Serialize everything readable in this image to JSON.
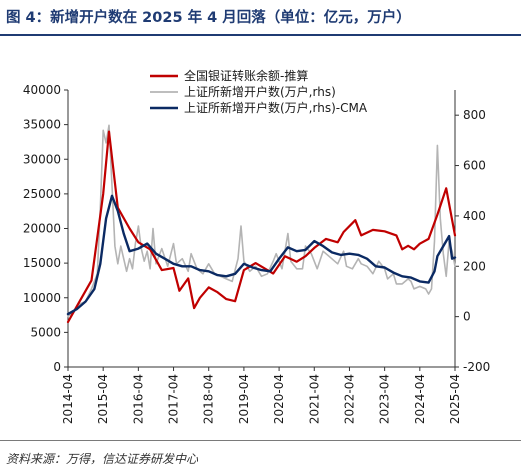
{
  "figure": {
    "title": "图 4：新增开户数在 2025 年 4 月回落（单位：亿元，万户）",
    "source": "资料来源：万得，信达证券研发中心"
  },
  "colors": {
    "title": "#1f3b73",
    "margin_balance": "#c00000",
    "new_accounts": "#b4b4b4",
    "new_accounts_ma": "#0b2a63"
  },
  "chart_data": {
    "type": "line",
    "x_tick_labels": [
      "2014-04",
      "2015-04",
      "2016-04",
      "2017-04",
      "2018-04",
      "2019-04",
      "2020-04",
      "2021-04",
      "2022-04",
      "2023-04",
      "2024-04",
      "2025-04"
    ],
    "y_left": {
      "ylim": [
        0,
        40000
      ],
      "ticks": [
        0,
        5000,
        10000,
        15000,
        20000,
        25000,
        30000,
        35000,
        40000
      ]
    },
    "y_right": {
      "ylim": [
        -200,
        900
      ],
      "ticks": [
        -200,
        0,
        200,
        400,
        600,
        800
      ]
    },
    "legend_position": "top",
    "series": [
      {
        "name": "全国银证转账余额-推算",
        "axis": "left",
        "color": "#c00000",
        "points": [
          [
            "2014-04",
            6500
          ],
          [
            "2014-08",
            9500
          ],
          [
            "2014-12",
            12500
          ],
          [
            "2015-04",
            25000
          ],
          [
            "2015-06",
            34000
          ],
          [
            "2015-09",
            23000
          ],
          [
            "2016-01",
            20000
          ],
          [
            "2016-04",
            18000
          ],
          [
            "2016-08",
            17000
          ],
          [
            "2016-12",
            14000
          ],
          [
            "2017-04",
            14300
          ],
          [
            "2017-06",
            11000
          ],
          [
            "2017-09",
            12800
          ],
          [
            "2017-11",
            8500
          ],
          [
            "2018-01",
            10000
          ],
          [
            "2018-04",
            11500
          ],
          [
            "2018-07",
            10800
          ],
          [
            "2018-10",
            9800
          ],
          [
            "2019-01",
            9500
          ],
          [
            "2019-04",
            14000
          ],
          [
            "2019-08",
            15000
          ],
          [
            "2019-12",
            14000
          ],
          [
            "2020-02",
            13500
          ],
          [
            "2020-06",
            16000
          ],
          [
            "2020-10",
            15200
          ],
          [
            "2021-01",
            16000
          ],
          [
            "2021-04",
            17200
          ],
          [
            "2021-08",
            18500
          ],
          [
            "2021-12",
            18000
          ],
          [
            "2022-02",
            19500
          ],
          [
            "2022-06",
            21200
          ],
          [
            "2022-08",
            19000
          ],
          [
            "2022-12",
            19800
          ],
          [
            "2023-04",
            19600
          ],
          [
            "2023-08",
            19000
          ],
          [
            "2023-10",
            17000
          ],
          [
            "2023-12",
            17500
          ],
          [
            "2024-02",
            17000
          ],
          [
            "2024-04",
            17800
          ],
          [
            "2024-07",
            18500
          ],
          [
            "2024-10",
            22000
          ],
          [
            "2025-01",
            25800
          ],
          [
            "2025-04",
            19000
          ]
        ]
      },
      {
        "name": "上证所新增开户数(万户,rhs)",
        "axis": "right",
        "color": "#b4b4b4",
        "points": [
          [
            "2014-04",
            1
          ],
          [
            "2014-06",
            20
          ],
          [
            "2014-08",
            50
          ],
          [
            "2014-10",
            60
          ],
          [
            "2014-12",
            110
          ],
          [
            "2015-02",
            170
          ],
          [
            "2015-03",
            430
          ],
          [
            "2015-04",
            740
          ],
          [
            "2015-05",
            690
          ],
          [
            "2015-06",
            760
          ],
          [
            "2015-07",
            520
          ],
          [
            "2015-08",
            280
          ],
          [
            "2015-09",
            210
          ],
          [
            "2015-10",
            280
          ],
          [
            "2015-12",
            180
          ],
          [
            "2016-01",
            230
          ],
          [
            "2016-02",
            190
          ],
          [
            "2016-03",
            290
          ],
          [
            "2016-04",
            360
          ],
          [
            "2016-05",
            270
          ],
          [
            "2016-06",
            220
          ],
          [
            "2016-07",
            260
          ],
          [
            "2016-08",
            190
          ],
          [
            "2016-09",
            350
          ],
          [
            "2016-10",
            210
          ],
          [
            "2016-12",
            270
          ],
          [
            "2017-02",
            200
          ],
          [
            "2017-04",
            290
          ],
          [
            "2017-05",
            210
          ],
          [
            "2017-07",
            230
          ],
          [
            "2017-09",
            180
          ],
          [
            "2017-10",
            250
          ],
          [
            "2017-12",
            190
          ],
          [
            "2018-02",
            170
          ],
          [
            "2018-04",
            210
          ],
          [
            "2018-06",
            170
          ],
          [
            "2018-08",
            160
          ],
          [
            "2018-10",
            150
          ],
          [
            "2018-12",
            140
          ],
          [
            "2019-02",
            230
          ],
          [
            "2019-03",
            360
          ],
          [
            "2019-04",
            220
          ],
          [
            "2019-06",
            180
          ],
          [
            "2019-08",
            200
          ],
          [
            "2019-10",
            160
          ],
          [
            "2019-12",
            170
          ],
          [
            "2020-02",
            220
          ],
          [
            "2020-03",
            250
          ],
          [
            "2020-05",
            190
          ],
          [
            "2020-07",
            330
          ],
          [
            "2020-08",
            220
          ],
          [
            "2020-10",
            190
          ],
          [
            "2020-12",
            190
          ],
          [
            "2021-01",
            280
          ],
          [
            "2021-03",
            250
          ],
          [
            "2021-05",
            190
          ],
          [
            "2021-07",
            260
          ],
          [
            "2021-09",
            240
          ],
          [
            "2021-12",
            210
          ],
          [
            "2022-02",
            260
          ],
          [
            "2022-03",
            200
          ],
          [
            "2022-05",
            190
          ],
          [
            "2022-07",
            230
          ],
          [
            "2022-08",
            210
          ],
          [
            "2022-10",
            200
          ],
          [
            "2022-12",
            170
          ],
          [
            "2023-02",
            220
          ],
          [
            "2023-04",
            190
          ],
          [
            "2023-05",
            150
          ],
          [
            "2023-07",
            170
          ],
          [
            "2023-08",
            130
          ],
          [
            "2023-10",
            130
          ],
          [
            "2023-12",
            150
          ],
          [
            "2024-01",
            140
          ],
          [
            "2024-02",
            110
          ],
          [
            "2024-04",
            120
          ],
          [
            "2024-06",
            110
          ],
          [
            "2024-07",
            90
          ],
          [
            "2024-08",
            110
          ],
          [
            "2024-09",
            300
          ],
          [
            "2024-10",
            680
          ],
          [
            "2024-11",
            390
          ],
          [
            "2024-12",
            250
          ],
          [
            "2025-01",
            160
          ],
          [
            "2025-02",
            300
          ],
          [
            "2025-03",
            260
          ],
          [
            "2025-04",
            200
          ]
        ]
      },
      {
        "name": "上证所新增开户数(万户,rhs)-CMA",
        "axis": "right",
        "color": "#0b2a63",
        "points": [
          [
            "2014-04",
            10
          ],
          [
            "2014-07",
            30
          ],
          [
            "2014-10",
            60
          ],
          [
            "2015-01",
            110
          ],
          [
            "2015-03",
            210
          ],
          [
            "2015-05",
            390
          ],
          [
            "2015-07",
            480
          ],
          [
            "2015-09",
            420
          ],
          [
            "2015-11",
            330
          ],
          [
            "2016-01",
            260
          ],
          [
            "2016-04",
            270
          ],
          [
            "2016-07",
            290
          ],
          [
            "2016-10",
            250
          ],
          [
            "2017-01",
            230
          ],
          [
            "2017-04",
            210
          ],
          [
            "2017-07",
            200
          ],
          [
            "2017-10",
            200
          ],
          [
            "2018-01",
            185
          ],
          [
            "2018-04",
            180
          ],
          [
            "2018-07",
            165
          ],
          [
            "2018-10",
            160
          ],
          [
            "2019-01",
            170
          ],
          [
            "2019-04",
            210
          ],
          [
            "2019-07",
            195
          ],
          [
            "2019-10",
            185
          ],
          [
            "2020-01",
            180
          ],
          [
            "2020-04",
            230
          ],
          [
            "2020-07",
            275
          ],
          [
            "2020-10",
            260
          ],
          [
            "2021-01",
            265
          ],
          [
            "2021-04",
            300
          ],
          [
            "2021-07",
            280
          ],
          [
            "2021-10",
            255
          ],
          [
            "2022-01",
            245
          ],
          [
            "2022-04",
            250
          ],
          [
            "2022-07",
            245
          ],
          [
            "2022-10",
            230
          ],
          [
            "2023-01",
            200
          ],
          [
            "2023-04",
            195
          ],
          [
            "2023-07",
            175
          ],
          [
            "2023-10",
            160
          ],
          [
            "2024-01",
            155
          ],
          [
            "2024-04",
            140
          ],
          [
            "2024-07",
            135
          ],
          [
            "2024-09",
            180
          ],
          [
            "2024-10",
            240
          ],
          [
            "2024-12",
            280
          ],
          [
            "2025-01",
            300
          ],
          [
            "2025-02",
            320
          ],
          [
            "2025-03",
            230
          ],
          [
            "2025-04",
            235
          ]
        ]
      }
    ]
  }
}
